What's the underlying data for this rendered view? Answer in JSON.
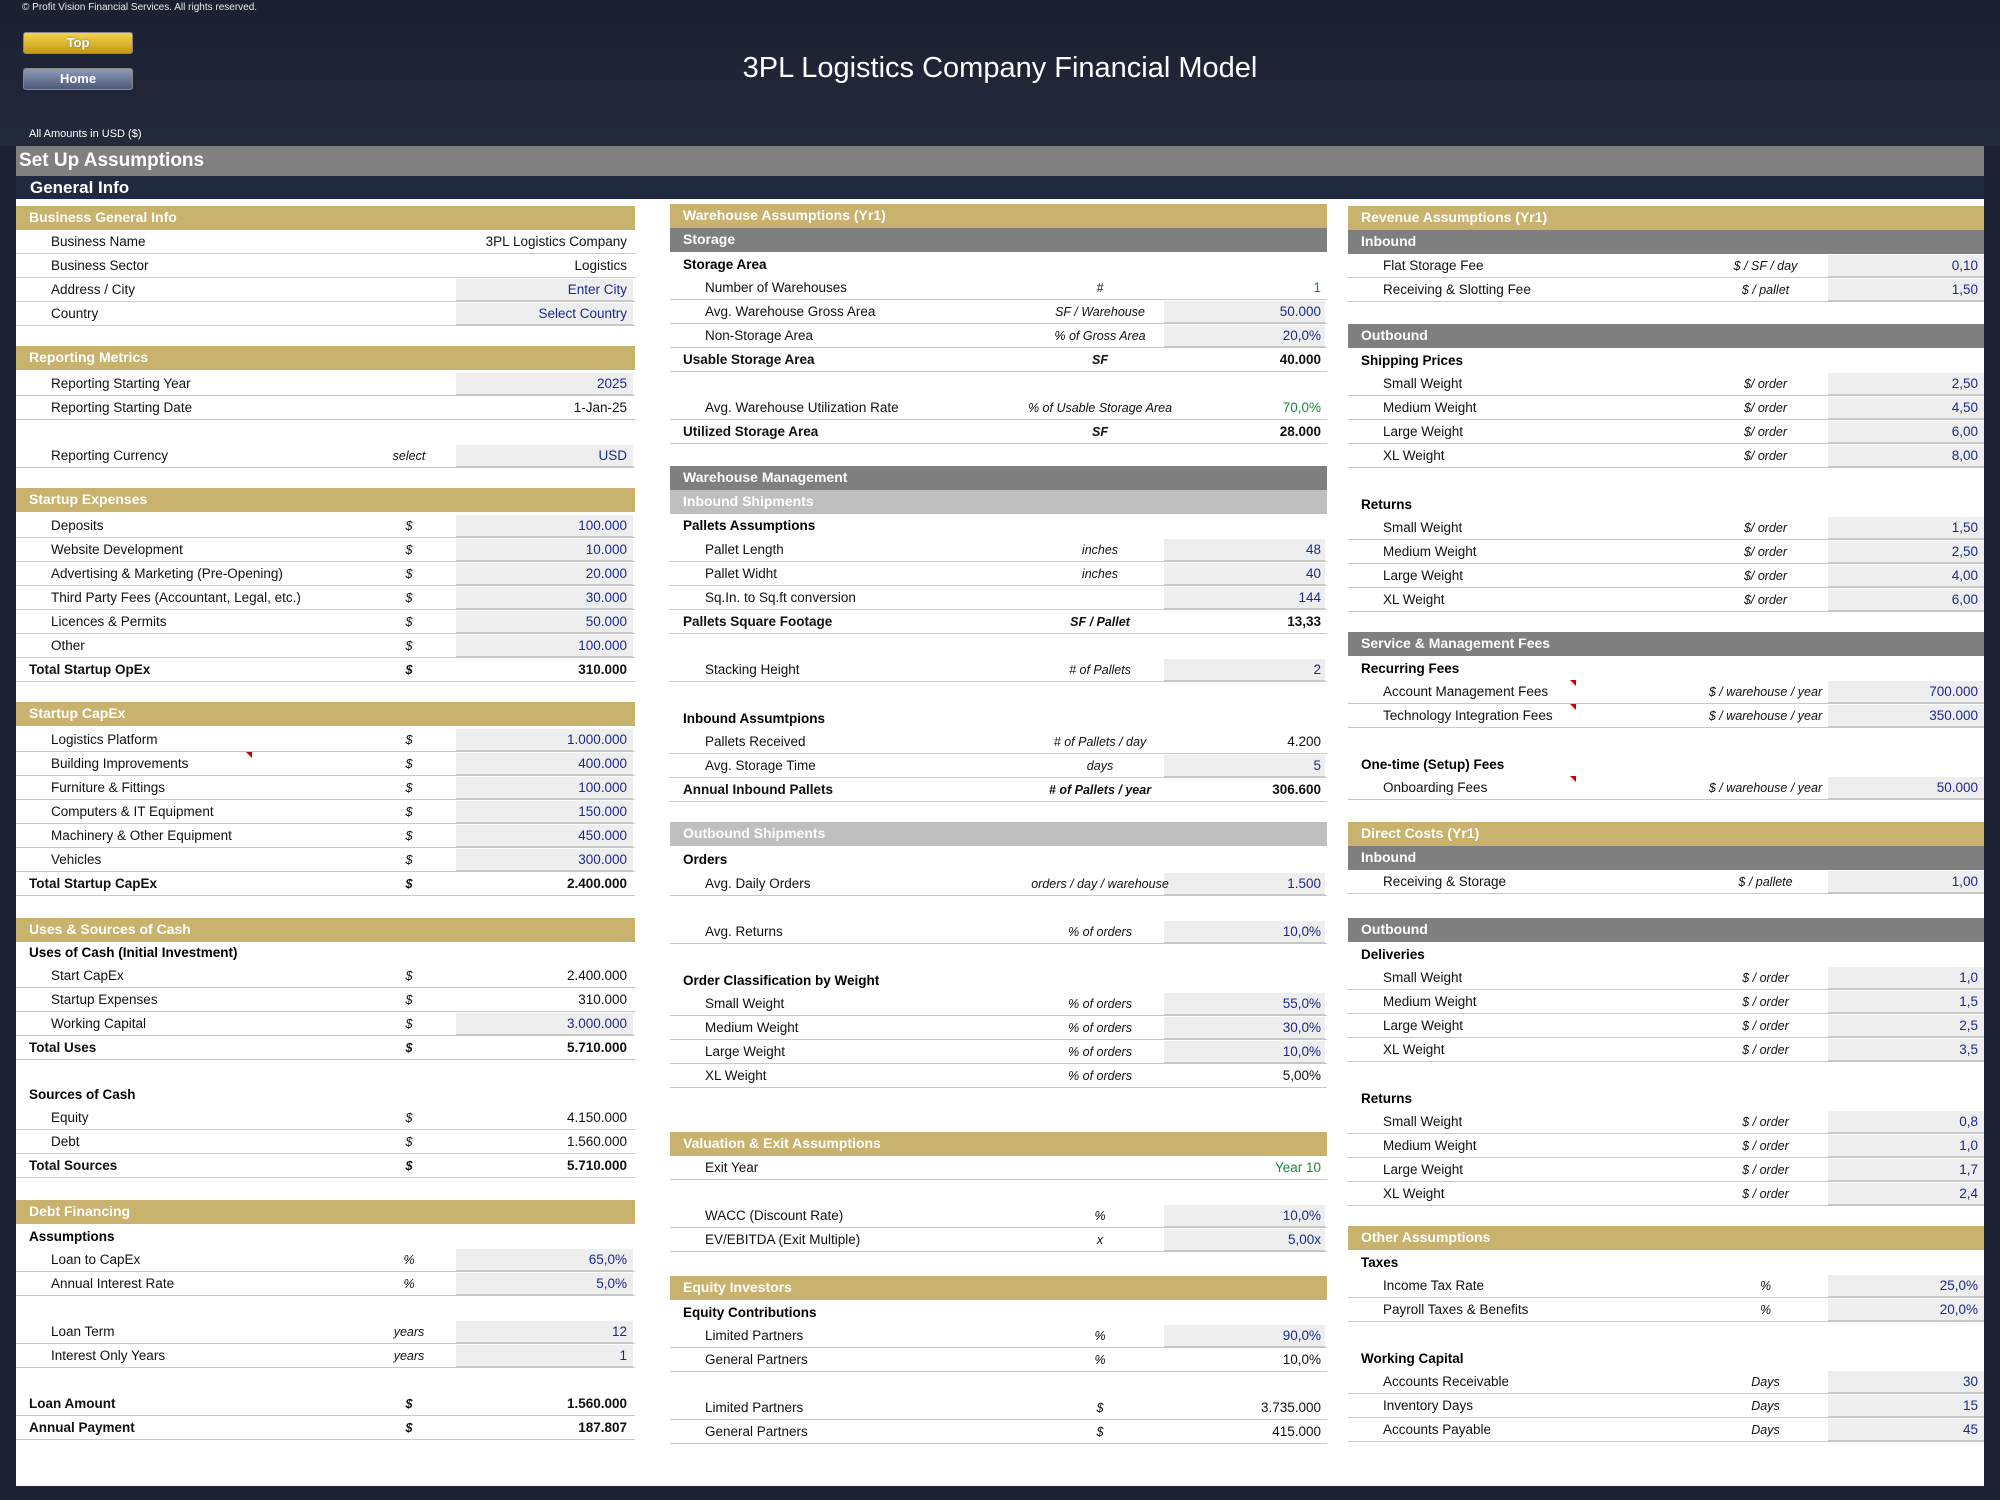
{
  "copyright": "© Profit Vision Financial Services. All rights reserved.",
  "nav": {
    "top": "Top",
    "home": "Home"
  },
  "title": "3PL Logistics Company Financial Model",
  "amounts": "All Amounts in  USD ($)",
  "setup": "Set Up Assumptions",
  "general": "General Info",
  "col1": {
    "business": {
      "title": "Business General Info",
      "rows": [
        {
          "label": "Business Name",
          "value": "3PL Logistics Company"
        },
        {
          "label": "Business Sector",
          "value": "Logistics"
        },
        {
          "label": "Address / City",
          "value": "Enter City"
        },
        {
          "label": "Country",
          "value": "Select Country"
        }
      ]
    },
    "reporting": {
      "title": "Reporting Metrics",
      "rows": [
        {
          "label": "Reporting Starting Year",
          "value": "2025"
        },
        {
          "label": "Reporting Starting Date",
          "value": "1-Jan-25"
        },
        {
          "label": "Reporting Currency",
          "unit": "select",
          "value": "USD"
        }
      ]
    },
    "startup": {
      "title": "Startup Expenses",
      "rows": [
        {
          "label": "Deposits",
          "unit": "$",
          "value": "100.000"
        },
        {
          "label": "Website Development",
          "unit": "$",
          "value": "10.000"
        },
        {
          "label": "Advertising & Marketing (Pre-Opening)",
          "unit": "$",
          "value": "20.000"
        },
        {
          "label": "Third Party Fees (Accountant, Legal, etc.)",
          "unit": "$",
          "value": "30.000"
        },
        {
          "label": "Licences & Permits",
          "unit": "$",
          "value": "50.000"
        },
        {
          "label": "Other",
          "unit": "$",
          "value": "100.000"
        }
      ],
      "total": {
        "label": "Total Startup OpEx",
        "unit": "$",
        "value": "310.000"
      }
    },
    "capex": {
      "title": "Startup CapEx",
      "rows": [
        {
          "label": "Logistics Platform",
          "unit": "$",
          "value": "1.000.000"
        },
        {
          "label": "Building Improvements",
          "unit": "$",
          "value": "400.000"
        },
        {
          "label": "Furniture & Fittings",
          "unit": "$",
          "value": "100.000"
        },
        {
          "label": "Computers & IT Equipment",
          "unit": "$",
          "value": "150.000"
        },
        {
          "label": "Machinery & Other Equipment",
          "unit": "$",
          "value": "450.000"
        },
        {
          "label": "Vehicles",
          "unit": "$",
          "value": "300.000"
        }
      ],
      "total": {
        "label": "Total Startup CapEx",
        "unit": "$",
        "value": "2.400.000"
      }
    },
    "uses": {
      "title": "Uses & Sources of Cash",
      "uses_label": "Uses of Cash (Initial Investment)",
      "rows": [
        {
          "label": "Start CapEx",
          "unit": "$",
          "value": "2.400.000"
        },
        {
          "label": "Startup Expenses",
          "unit": "$",
          "value": "310.000"
        },
        {
          "label": "Working Capital",
          "unit": "$",
          "value": "3.000.000"
        }
      ],
      "total_uses": {
        "label": "Total Uses",
        "unit": "$",
        "value": "5.710.000"
      },
      "sources_label": "Sources of Cash",
      "sources": [
        {
          "label": "Equity",
          "unit": "$",
          "value": "4.150.000"
        },
        {
          "label": "Debt",
          "unit": "$",
          "value": "1.560.000"
        }
      ],
      "total_sources": {
        "label": "Total Sources",
        "unit": "$",
        "value": "5.710.000"
      }
    },
    "debt": {
      "title": "Debt Financing",
      "assumptions": "Assumptions",
      "rows": [
        {
          "label": "Loan to CapEx",
          "unit": "%",
          "value": "65,0%"
        },
        {
          "label": "Annual Interest Rate",
          "unit": "%",
          "value": "5,0%"
        },
        {
          "label": "Loan Term",
          "unit": "years",
          "value": "12"
        },
        {
          "label": "Interest Only Years",
          "unit": "years",
          "value": "1"
        },
        {
          "label": "Loan Amount",
          "unit": "$",
          "value": "1.560.000"
        },
        {
          "label": "Annual Payment",
          "unit": "$",
          "value": "187.807"
        }
      ]
    }
  },
  "col2": {
    "warehouse": {
      "title": "Warehouse Assumptions (Yr1)",
      "storage": "Storage",
      "storage_area": "Storage Area",
      "rows": [
        {
          "label": "Number of Warehouses",
          "unit": "#",
          "value": "1"
        },
        {
          "label": "Avg. Warehouse Gross Area",
          "unit": "SF / Warehouse",
          "value": "50.000"
        },
        {
          "label": "Non-Storage Area",
          "unit": "% of Gross Area",
          "value": "20,0%"
        },
        {
          "label": "Usable Storage Area",
          "unit": "SF",
          "value": "40.000"
        },
        {
          "label": "Avg. Warehouse Utilization Rate",
          "unit": "% of Usable Storage Area",
          "value": "70,0%"
        },
        {
          "label": "Utilized Storage Area",
          "unit": "SF",
          "value": "28.000"
        }
      ]
    },
    "mgmt": {
      "title": "Warehouse Management",
      "inbound": "Inbound Shipments",
      "pallets": "Pallets Assumptions",
      "rows": [
        {
          "label": "Pallet Length",
          "unit": "inches",
          "value": "48"
        },
        {
          "label": "Pallet Widht",
          "unit": "inches",
          "value": "40"
        },
        {
          "label": "Sq.In. to Sq.ft conversion",
          "unit": "",
          "value": "144"
        },
        {
          "label": "Pallets Square Footage",
          "unit": "SF / Pallet",
          "value": "13,33"
        },
        {
          "label": "Stacking Height",
          "unit": "# of Pallets",
          "value": "2"
        }
      ],
      "inbound_assumptions": "Inbound Assumtpions",
      "inrows": [
        {
          "label": "Pallets Received",
          "unit": "# of Pallets / day",
          "value": "4.200"
        },
        {
          "label": "Avg. Storage Time",
          "unit": "days",
          "value": "5"
        },
        {
          "label": "Annual Inbound Pallets",
          "unit": "# of Pallets / year",
          "value": "306.600"
        }
      ]
    },
    "outbound": {
      "title": "Outbound Shipments",
      "orders": "Orders",
      "rows": [
        {
          "label": "Avg. Daily Orders",
          "unit": "orders / day / warehouse",
          "value": "1.500"
        },
        {
          "label": "Avg. Returns",
          "unit": "% of orders",
          "value": "10,0%"
        }
      ],
      "class": "Order Classification by Weight",
      "crows": [
        {
          "label": "Small Weight",
          "unit": "% of orders",
          "value": "55,0%"
        },
        {
          "label": "Medium Weight",
          "unit": "% of orders",
          "value": "30,0%"
        },
        {
          "label": "Large Weight",
          "unit": "% of orders",
          "value": "10,0%"
        },
        {
          "label": "XL Weight",
          "unit": "% of orders",
          "value": "5,00%"
        }
      ]
    },
    "valuation": {
      "title": "Valuation & Exit Assumptions",
      "rows": [
        {
          "label": "Exit Year",
          "unit": "",
          "value": "Year 10"
        },
        {
          "label": "WACC (Discount Rate)",
          "unit": "%",
          "value": "10,0%"
        },
        {
          "label": "EV/EBITDA (Exit Multiple)",
          "unit": "x",
          "value": "5,00x"
        }
      ]
    },
    "equity": {
      "title": "Equity Investors",
      "contrib": "Equity Contributions",
      "rows": [
        {
          "label": "Limited Partners",
          "unit": "%",
          "value": "90,0%"
        },
        {
          "label": "General Partners",
          "unit": "%",
          "value": "10,0%"
        },
        {
          "label": "Limited Partners",
          "unit": "$",
          "value": "3.735.000"
        },
        {
          "label": "General Partners",
          "unit": "$",
          "value": "415.000"
        }
      ]
    }
  },
  "col3": {
    "revenue": {
      "title": "Revenue Assumptions (Yr1)",
      "inbound": "Inbound",
      "inrows": [
        {
          "label": "Flat Storage Fee",
          "unit": "$ / SF / day",
          "value": "0,10"
        },
        {
          "label": "Receiving & Slotting Fee",
          "unit": "$ / pallet",
          "value": "1,50"
        }
      ],
      "outbound": "Outbound",
      "shipping": "Shipping Prices",
      "shiprows": [
        {
          "label": "Small Weight",
          "unit": "$/ order",
          "value": "2,50"
        },
        {
          "label": "Medium Weight",
          "unit": "$/ order",
          "value": "4,50"
        },
        {
          "label": "Large Weight",
          "unit": "$/ order",
          "value": "6,00"
        },
        {
          "label": "XL Weight",
          "unit": "$/ order",
          "value": "8,00"
        }
      ],
      "returns": "Returns",
      "retrows": [
        {
          "label": "Small Weight",
          "unit": "$/ order",
          "value": "1,50"
        },
        {
          "label": "Medium Weight",
          "unit": "$/ order",
          "value": "2,50"
        },
        {
          "label": "Large Weight",
          "unit": "$/ order",
          "value": "4,00"
        },
        {
          "label": "XL Weight",
          "unit": "$/ order",
          "value": "6,00"
        }
      ]
    },
    "service": {
      "title": "Service & Management Fees",
      "recurring": "Recurring Fees",
      "rows": [
        {
          "label": "Account Management Fees",
          "unit": "$ / warehouse / year",
          "value": "700.000"
        },
        {
          "label": "Technology Integration Fees",
          "unit": "$ / warehouse / year",
          "value": "350.000"
        }
      ],
      "onetime": "One-time (Setup) Fees",
      "orows": [
        {
          "label": "Onboarding Fees",
          "unit": "$ / warehouse / year",
          "value": "50.000"
        }
      ]
    },
    "direct": {
      "title": "Direct Costs (Yr1)",
      "inbound": "Inbound",
      "inrows": [
        {
          "label": "Receiving & Storage",
          "unit": "$ / pallete",
          "value": "1,00"
        }
      ],
      "outbound": "Outbound",
      "deliveries": "Deliveries",
      "drows": [
        {
          "label": "Small Weight",
          "unit": "$ / order",
          "value": "1,0"
        },
        {
          "label": "Medium Weight",
          "unit": "$ / order",
          "value": "1,5"
        },
        {
          "label": "Large Weight",
          "unit": "$ / order",
          "value": "2,5"
        },
        {
          "label": "XL Weight",
          "unit": "$ / order",
          "value": "3,5"
        }
      ],
      "returns": "Returns",
      "rrows": [
        {
          "label": "Small Weight",
          "unit": "$ / order",
          "value": "0,8"
        },
        {
          "label": "Medium Weight",
          "unit": "$ / order",
          "value": "1,0"
        },
        {
          "label": "Large Weight",
          "unit": "$ / order",
          "value": "1,7"
        },
        {
          "label": "XL Weight",
          "unit": "$ / order",
          "value": "2,4"
        }
      ]
    },
    "other": {
      "title": "Other Assumptions",
      "taxes": "Taxes",
      "trows": [
        {
          "label": "Income Tax Rate",
          "unit": "%",
          "value": "25,0%"
        },
        {
          "label": "Payroll Taxes & Benefits",
          "unit": "%",
          "value": "20,0%"
        }
      ],
      "wc": "Working Capital",
      "wrows": [
        {
          "label": "Accounts Receivable",
          "unit": "Days",
          "value": "30"
        },
        {
          "label": "Inventory Days",
          "unit": "Days",
          "value": "15"
        },
        {
          "label": "Accounts Payable",
          "unit": "Days",
          "value": "45"
        }
      ]
    }
  },
  "colors": {
    "gold": "#c9b26e",
    "grey": "#7f7f7f",
    "input_blue": "#1a2a8c",
    "green": "#1a8a3a"
  }
}
